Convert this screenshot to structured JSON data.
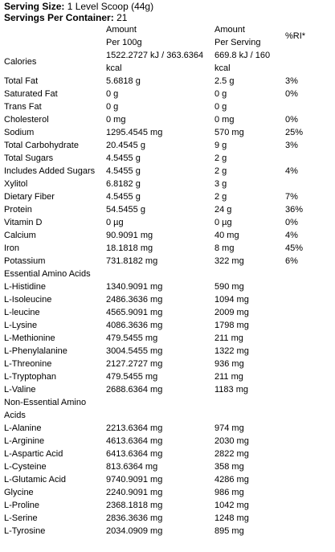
{
  "header": {
    "serving_size_label": "Serving Size:",
    "serving_size": "1 Level Scoop (44g)",
    "servings_label": "Servings Per Container:",
    "servings": "21"
  },
  "table": {
    "columns": [
      [],
      [
        "Amount",
        "Per 100g"
      ],
      [
        "Amount",
        "Per Serving"
      ],
      [
        "%RI*"
      ]
    ],
    "rows": [
      [
        "Calories",
        "1522.2727 kJ / 363.6364 kcal",
        "669.8 kJ / 160 kcal"
      ],
      [
        "Total Fat",
        "5.6818 g",
        "2.5 g",
        "3%"
      ],
      [
        "Saturated Fat",
        "0 g",
        "0 g",
        "0%"
      ],
      [
        "Trans Fat",
        "0 g",
        "0 g"
      ],
      [
        "Cholesterol",
        "0 mg",
        "0 mg",
        "0%"
      ],
      [
        "Sodium",
        "1295.4545 mg",
        "570 mg",
        "25%"
      ],
      [
        "Total Carbohydrate",
        "20.4545 g",
        "9 g",
        "3%"
      ],
      [
        "Total Sugars",
        "4.5455 g",
        "2 g"
      ],
      [
        "Includes Added Sugars",
        "4.5455 g",
        "2 g",
        "4%"
      ],
      [
        "Xylitol",
        "6.8182 g",
        "3 g"
      ],
      [
        "Dietary Fiber",
        "4.5455 g",
        "2 g",
        "7%"
      ],
      [
        "Protein",
        "54.5455 g",
        "24 g",
        "36%"
      ],
      [
        "Vitamin D",
        "0 µg",
        "0 µg",
        "0%"
      ],
      [
        "Calcium",
        "90.9091 mg",
        "40 mg",
        "4%"
      ],
      [
        "Iron",
        "18.1818 mg",
        "8 mg",
        "45%"
      ],
      [
        "Potassium",
        "731.8182 mg",
        "322 mg",
        "6%"
      ],
      [
        "Essential Amino Acids"
      ],
      [
        "L-Histidine",
        "1340.9091 mg",
        "590 mg"
      ],
      [
        "L-Isoleucine",
        "2486.3636 mg",
        "1094 mg"
      ],
      [
        "L-leucine",
        "4565.9091 mg",
        "2009 mg"
      ],
      [
        "L-Lysine",
        "4086.3636 mg",
        "1798 mg"
      ],
      [
        "L-Methionine",
        "479.5455 mg",
        "211 mg"
      ],
      [
        "L-Phenylalanine",
        "3004.5455 mg",
        "1322 mg"
      ],
      [
        "L-Threonine",
        "2127.2727 mg",
        "936 mg"
      ],
      [
        "L-Tryptophan",
        "479.5455 mg",
        "211 mg"
      ],
      [
        "L-Valine",
        "2688.6364 mg",
        "1183 mg"
      ],
      [
        "Non-Essential Amino Acids"
      ],
      [
        "L-Alanine",
        "2213.6364 mg",
        "974 mg"
      ],
      [
        "L-Arginine",
        "4613.6364 mg",
        "2030 mg"
      ],
      [
        "L-Aspartic Acid",
        "6413.6364 mg",
        "2822 mg"
      ],
      [
        "L-Cysteine",
        "813.6364 mg",
        "358 mg"
      ],
      [
        "L-Glutamic Acid",
        "9740.9091 mg",
        "4286 mg"
      ],
      [
        "Glycine",
        "2240.9091 mg",
        "986 mg"
      ],
      [
        "L-Proline",
        "2368.1818 mg",
        "1042 mg"
      ],
      [
        "L-Serine",
        "2836.3636 mg",
        "1248 mg"
      ],
      [
        "L-Tyrosine",
        "2034.0909 mg",
        "895 mg"
      ]
    ]
  }
}
